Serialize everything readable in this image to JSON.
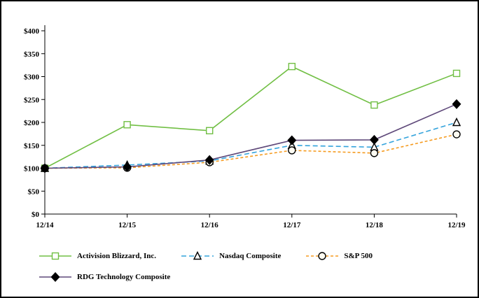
{
  "chart_data": {
    "type": "line",
    "title": "",
    "xlabel": "",
    "ylabel": "",
    "x_labels": [
      "12/14",
      "12/15",
      "12/16",
      "12/17",
      "12/18",
      "12/19"
    ],
    "ylim": [
      0,
      400
    ],
    "ytick_step": 50,
    "ytick_labels": [
      "$0",
      "$50",
      "$100",
      "$150",
      "$200",
      "$250",
      "$300",
      "$350",
      "$400"
    ],
    "grid": false,
    "legend_position": "bottom",
    "series": [
      {
        "name": "Activision Blizzard, Inc.",
        "values": [
          100,
          195,
          182,
          322,
          238,
          307
        ],
        "color": "#71BF44",
        "dash": "none",
        "marker": "square",
        "marker_fill": "#FFFFFF",
        "marker_stroke": "#71BF44"
      },
      {
        "name": "Nasdaq Composite",
        "values": [
          100,
          107,
          116,
          150,
          146,
          200
        ],
        "color": "#33A3DC",
        "dash": "7 4",
        "marker": "triangle",
        "marker_fill": "#FFFFFF",
        "marker_stroke": "#000000"
      },
      {
        "name": "S&P 500",
        "values": [
          100,
          101,
          113,
          139,
          133,
          174
        ],
        "color": "#F59B20",
        "dash": "4 3",
        "marker": "circle",
        "marker_fill": "#FFFDF2",
        "marker_stroke": "#000000"
      },
      {
        "name": "RDG Technology Composite",
        "values": [
          100,
          103,
          118,
          161,
          162,
          240
        ],
        "color": "#5F497A",
        "dash": "none",
        "marker": "diamond",
        "marker_fill": "#000000",
        "marker_stroke": "#000000"
      }
    ]
  }
}
